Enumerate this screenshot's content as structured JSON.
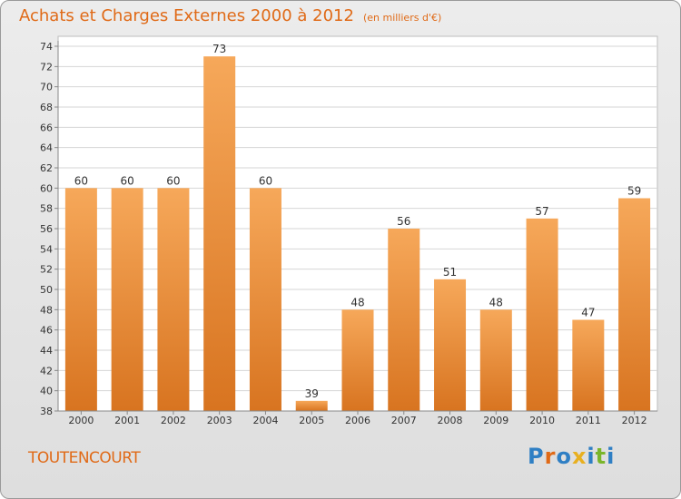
{
  "header": {
    "title": "Achats et Charges Externes 2000 à 2012",
    "subtitle": "(en milliers d'€)"
  },
  "footer": {
    "commune": "TOUTENCOURT",
    "logo_text": "Proxiti"
  },
  "colors": {
    "title": "#e06a17",
    "bar_top": "#f6a85a",
    "bar_bottom": "#d87420",
    "logo": [
      "#2f7fc4",
      "#e06a17",
      "#2f7fc4",
      "#e8b020",
      "#2f7fc4",
      "#7ab52a",
      "#2f7fc4"
    ]
  },
  "chart_data": {
    "type": "bar",
    "title": "Achats et Charges Externes 2000 à 2012",
    "subtitle": "(en milliers d'€)",
    "categories": [
      "2000",
      "2001",
      "2002",
      "2003",
      "2004",
      "2005",
      "2006",
      "2007",
      "2008",
      "2009",
      "2010",
      "2011",
      "2012"
    ],
    "values": [
      60,
      60,
      60,
      73,
      60,
      39,
      48,
      56,
      51,
      48,
      57,
      47,
      59
    ],
    "ylim": [
      38,
      74
    ],
    "yticks": [
      38,
      40,
      42,
      44,
      46,
      48,
      50,
      52,
      54,
      56,
      58,
      60,
      62,
      64,
      66,
      68,
      70,
      72,
      74
    ],
    "grid": true,
    "legend": "none"
  }
}
